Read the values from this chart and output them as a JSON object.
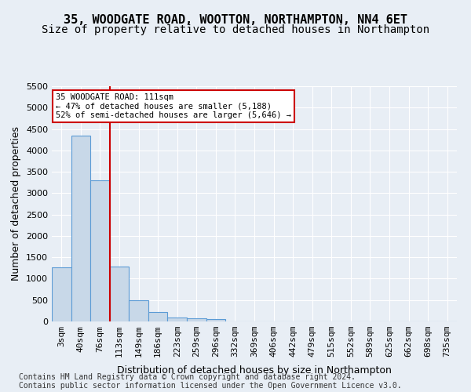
{
  "title_line1": "35, WOODGATE ROAD, WOOTTON, NORTHAMPTON, NN4 6ET",
  "title_line2": "Size of property relative to detached houses in Northampton",
  "xlabel": "Distribution of detached houses by size in Northampton",
  "ylabel": "Number of detached properties",
  "bar_values": [
    1270,
    4340,
    3300,
    1290,
    490,
    215,
    90,
    65,
    55,
    0,
    0,
    0,
    0,
    0,
    0,
    0,
    0,
    0,
    0,
    0,
    0
  ],
  "bar_labels": [
    "3sqm",
    "40sqm",
    "76sqm",
    "113sqm",
    "149sqm",
    "186sqm",
    "223sqm",
    "259sqm",
    "296sqm",
    "332sqm",
    "369sqm",
    "406sqm",
    "442sqm",
    "479sqm",
    "515sqm",
    "552sqm",
    "589sqm",
    "625sqm",
    "662sqm",
    "698sqm",
    "735sqm"
  ],
  "bar_color": "#c8d8e8",
  "bar_edge_color": "#5b9bd5",
  "vline_pos": 2.5,
  "vline_color": "#cc0000",
  "annotation_title": "35 WOODGATE ROAD: 111sqm",
  "annotation_line1": "← 47% of detached houses are smaller (5,188)",
  "annotation_line2": "52% of semi-detached houses are larger (5,646) →",
  "annotation_box_color": "#cc0000",
  "ylim": [
    0,
    5500
  ],
  "yticks": [
    0,
    500,
    1000,
    1500,
    2000,
    2500,
    3000,
    3500,
    4000,
    4500,
    5000,
    5500
  ],
  "footer_line1": "Contains HM Land Registry data © Crown copyright and database right 2024.",
  "footer_line2": "Contains public sector information licensed under the Open Government Licence v3.0.",
  "bg_color": "#e8eef5",
  "plot_bg_color": "#e8eef5",
  "grid_color": "#ffffff",
  "title_fontsize": 11,
  "subtitle_fontsize": 10,
  "axis_label_fontsize": 9,
  "tick_fontsize": 8,
  "footer_fontsize": 7
}
